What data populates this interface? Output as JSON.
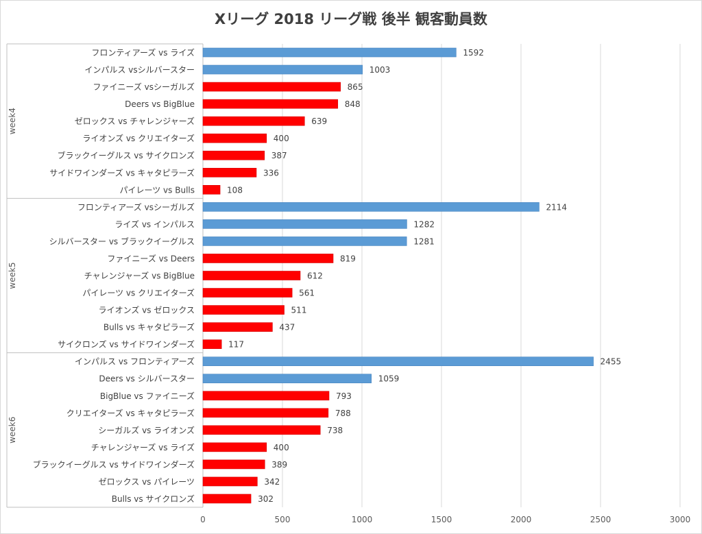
{
  "chart_data": {
    "type": "bar",
    "orientation": "horizontal",
    "title": "Xリーグ 2018 リーグ戦 後半 観客動員数",
    "xlim": [
      0,
      3000
    ],
    "xticks": [
      0,
      500,
      1000,
      1500,
      2000,
      2500,
      3000
    ],
    "grid": true,
    "legend": "none",
    "colors": {
      "top": "#5b9bd5",
      "other": "#ff0000"
    },
    "groups": [
      {
        "name": "week4",
        "items": [
          {
            "label": "フロンティアーズ vs ライズ",
            "value": 1592,
            "highlight": true
          },
          {
            "label": "インパルス vsシルバースター",
            "value": 1003,
            "highlight": true
          },
          {
            "label": "ファイニーズ vsシーガルズ",
            "value": 865,
            "highlight": false
          },
          {
            "label": "Deers vs BigBlue",
            "value": 848,
            "highlight": false
          },
          {
            "label": "ゼロックス vs チャレンジャーズ",
            "value": 639,
            "highlight": false
          },
          {
            "label": "ライオンズ vs クリエイターズ",
            "value": 400,
            "highlight": false
          },
          {
            "label": "ブラックイーグルス vs サイクロンズ",
            "value": 387,
            "highlight": false
          },
          {
            "label": "サイドワインダーズ vs キャタピラーズ",
            "value": 336,
            "highlight": false
          },
          {
            "label": "パイレーツ vs Bulls",
            "value": 108,
            "highlight": false
          }
        ]
      },
      {
        "name": "week5",
        "items": [
          {
            "label": "フロンティアーズ vsシーガルズ",
            "value": 2114,
            "highlight": true
          },
          {
            "label": "ライズ vs インパルス",
            "value": 1282,
            "highlight": true
          },
          {
            "label": "シルバースター vs ブラックイーグルス",
            "value": 1281,
            "highlight": true
          },
          {
            "label": "ファイニーズ vs Deers",
            "value": 819,
            "highlight": false
          },
          {
            "label": "チャレンジャーズ vs BigBlue",
            "value": 612,
            "highlight": false
          },
          {
            "label": "パイレーツ vs クリエイターズ",
            "value": 561,
            "highlight": false
          },
          {
            "label": "ライオンズ vs ゼロックス",
            "value": 511,
            "highlight": false
          },
          {
            "label": "Bulls vs キャタピラーズ",
            "value": 437,
            "highlight": false
          },
          {
            "label": "サイクロンズ vs サイドワインダーズ",
            "value": 117,
            "highlight": false
          }
        ]
      },
      {
        "name": "week6",
        "items": [
          {
            "label": "インパルス vs フロンティアーズ",
            "value": 2455,
            "highlight": true
          },
          {
            "label": "Deers vs シルバースター",
            "value": 1059,
            "highlight": true
          },
          {
            "label": "BigBlue vs ファイニーズ",
            "value": 793,
            "highlight": false
          },
          {
            "label": "クリエイターズ vs キャタピラーズ",
            "value": 788,
            "highlight": false
          },
          {
            "label": "シーガルズ vs ライオンズ",
            "value": 738,
            "highlight": false
          },
          {
            "label": "チャレンジャーズ vs ライズ",
            "value": 400,
            "highlight": false
          },
          {
            "label": "ブラックイーグルス vs サイドワインダーズ",
            "value": 389,
            "highlight": false
          },
          {
            "label": "ゼロックス vs パイレーツ",
            "value": 342,
            "highlight": false
          },
          {
            "label": "Bulls vs サイクロンズ",
            "value": 302,
            "highlight": false
          }
        ]
      }
    ]
  }
}
